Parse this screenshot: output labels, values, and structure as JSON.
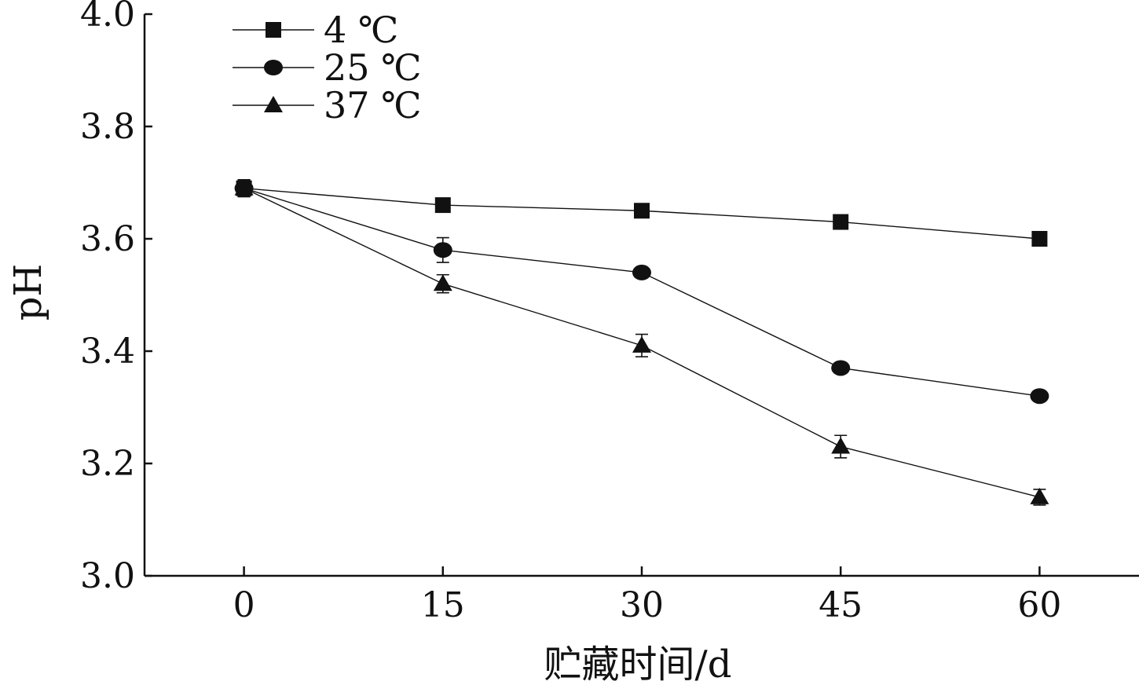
{
  "chart_data": {
    "type": "line",
    "xlabel": "贮藏时间/d",
    "ylabel": "pH",
    "x": [
      0,
      15,
      30,
      45,
      60
    ],
    "x_ticks": [
      "0",
      "15",
      "30",
      "45",
      "60"
    ],
    "y_ticks": [
      "3.0",
      "3.2",
      "3.4",
      "3.6",
      "3.8",
      "4.0"
    ],
    "ylim": [
      3.0,
      4.0
    ],
    "xlim": [
      -7.5,
      67.5
    ],
    "grid": false,
    "legend_position": "top-left",
    "series": [
      {
        "name": "4 ℃",
        "marker": "square",
        "values": [
          3.69,
          3.66,
          3.65,
          3.63,
          3.6
        ],
        "errors": [
          0.015,
          0.008,
          0.01,
          0.008,
          0.012
        ]
      },
      {
        "name": "25 ℃",
        "marker": "circle",
        "values": [
          3.69,
          3.58,
          3.54,
          3.37,
          3.32
        ],
        "errors": [
          0.015,
          0.022,
          0.008,
          0.008,
          0.006
        ]
      },
      {
        "name": "37 ℃",
        "marker": "triangle",
        "values": [
          3.69,
          3.52,
          3.41,
          3.23,
          3.14
        ],
        "errors": [
          0.015,
          0.016,
          0.02,
          0.02,
          0.014
        ]
      }
    ],
    "colors": {
      "ink": "#111111"
    }
  }
}
